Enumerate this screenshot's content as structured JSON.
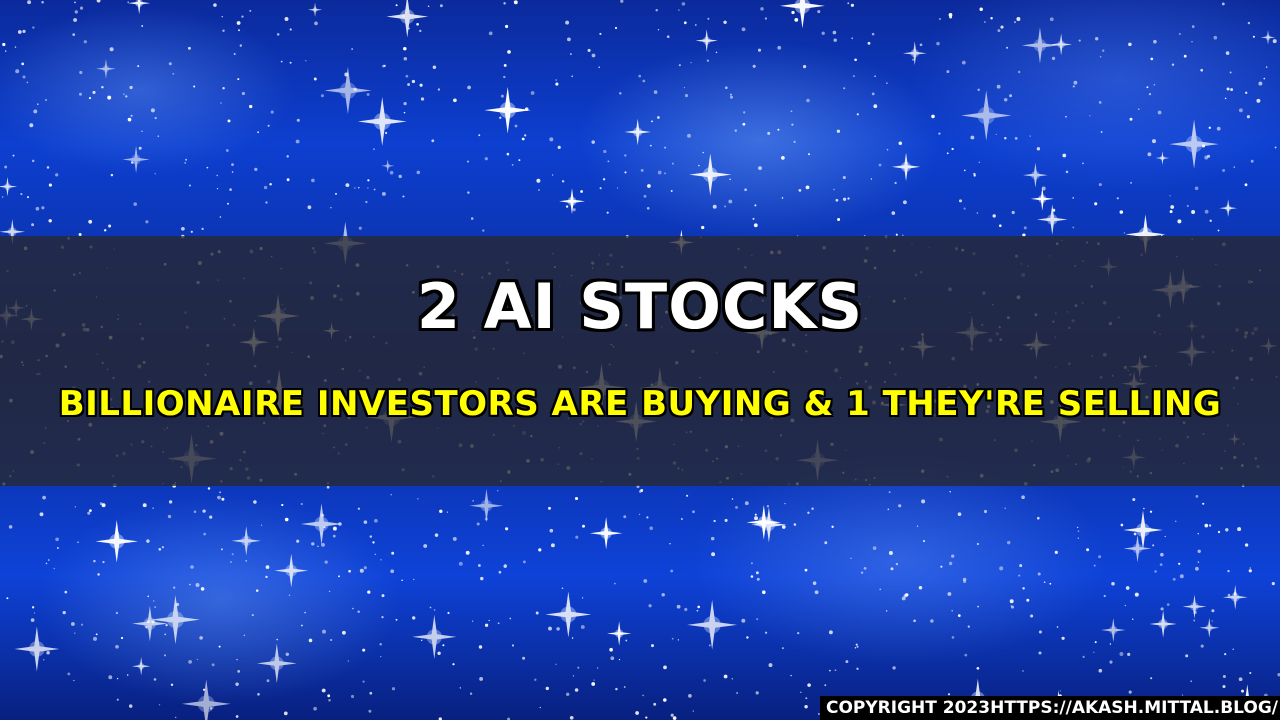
{
  "background": {
    "description_icon": "sparkle-starfield-icon",
    "colors": {
      "base_blue": "#0d3fd0",
      "deep_blue": "#08207f",
      "band": "#28282f",
      "title_text": "#ffffff",
      "subtitle_text": "#ffff00"
    }
  },
  "headline": {
    "title": "2 AI STOCKS",
    "subtitle": "BILLIONAIRE INVESTORS ARE BUYING & 1 THEY'RE SELLING"
  },
  "footer": {
    "copyright": "COPYRIGHT 2023HTTPS://AKASH.MITTAL.BLOG/"
  }
}
